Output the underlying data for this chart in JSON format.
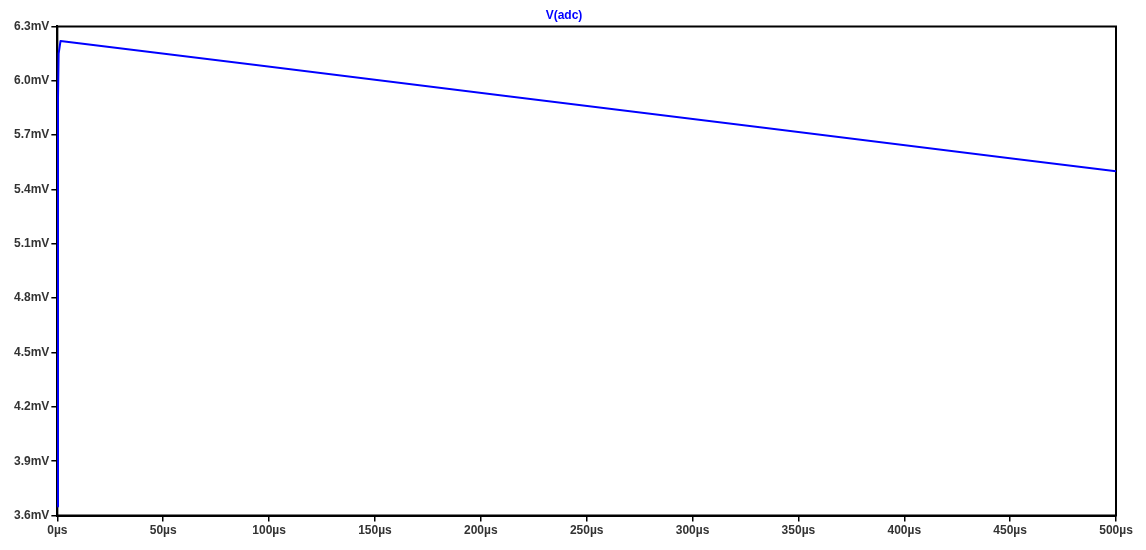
{
  "chart_data": {
    "type": "line",
    "title": "V(adc)",
    "x": [
      0,
      0.3,
      0.6,
      1.5,
      500
    ],
    "series": [
      {
        "color": "#0000ff",
        "values": [
          3.65,
          5.9,
          6.15,
          6.22,
          5.5
        ]
      }
    ],
    "xlim": [
      0,
      500
    ],
    "xticks": [
      {
        "value": 0,
        "label": "0µs"
      },
      {
        "value": 50,
        "label": "50µs"
      },
      {
        "value": 100,
        "label": "100µs"
      },
      {
        "value": 150,
        "label": "150µs"
      },
      {
        "value": 200,
        "label": "200µs"
      },
      {
        "value": 250,
        "label": "250µs"
      },
      {
        "value": 300,
        "label": "300µs"
      },
      {
        "value": 350,
        "label": "350µs"
      },
      {
        "value": 400,
        "label": "400µs"
      },
      {
        "value": 450,
        "label": "450µs"
      },
      {
        "value": 500,
        "label": "500µs"
      }
    ],
    "ylim": [
      3.6,
      6.3
    ],
    "yticks": [
      {
        "value": 3.6,
        "label": "3.6mV"
      },
      {
        "value": 3.9,
        "label": "3.9mV"
      },
      {
        "value": 4.2,
        "label": "4.2mV"
      },
      {
        "value": 4.5,
        "label": "4.5mV"
      },
      {
        "value": 4.8,
        "label": "4.8mV"
      },
      {
        "value": 5.1,
        "label": "5.1mV"
      },
      {
        "value": 5.4,
        "label": "5.4mV"
      },
      {
        "value": 5.7,
        "label": "5.7mV"
      },
      {
        "value": 6.0,
        "label": "6.0mV"
      },
      {
        "value": 6.3,
        "label": "6.3mV"
      }
    ],
    "grid": false,
    "legend": false,
    "marker": "none",
    "line_style": "solid"
  }
}
